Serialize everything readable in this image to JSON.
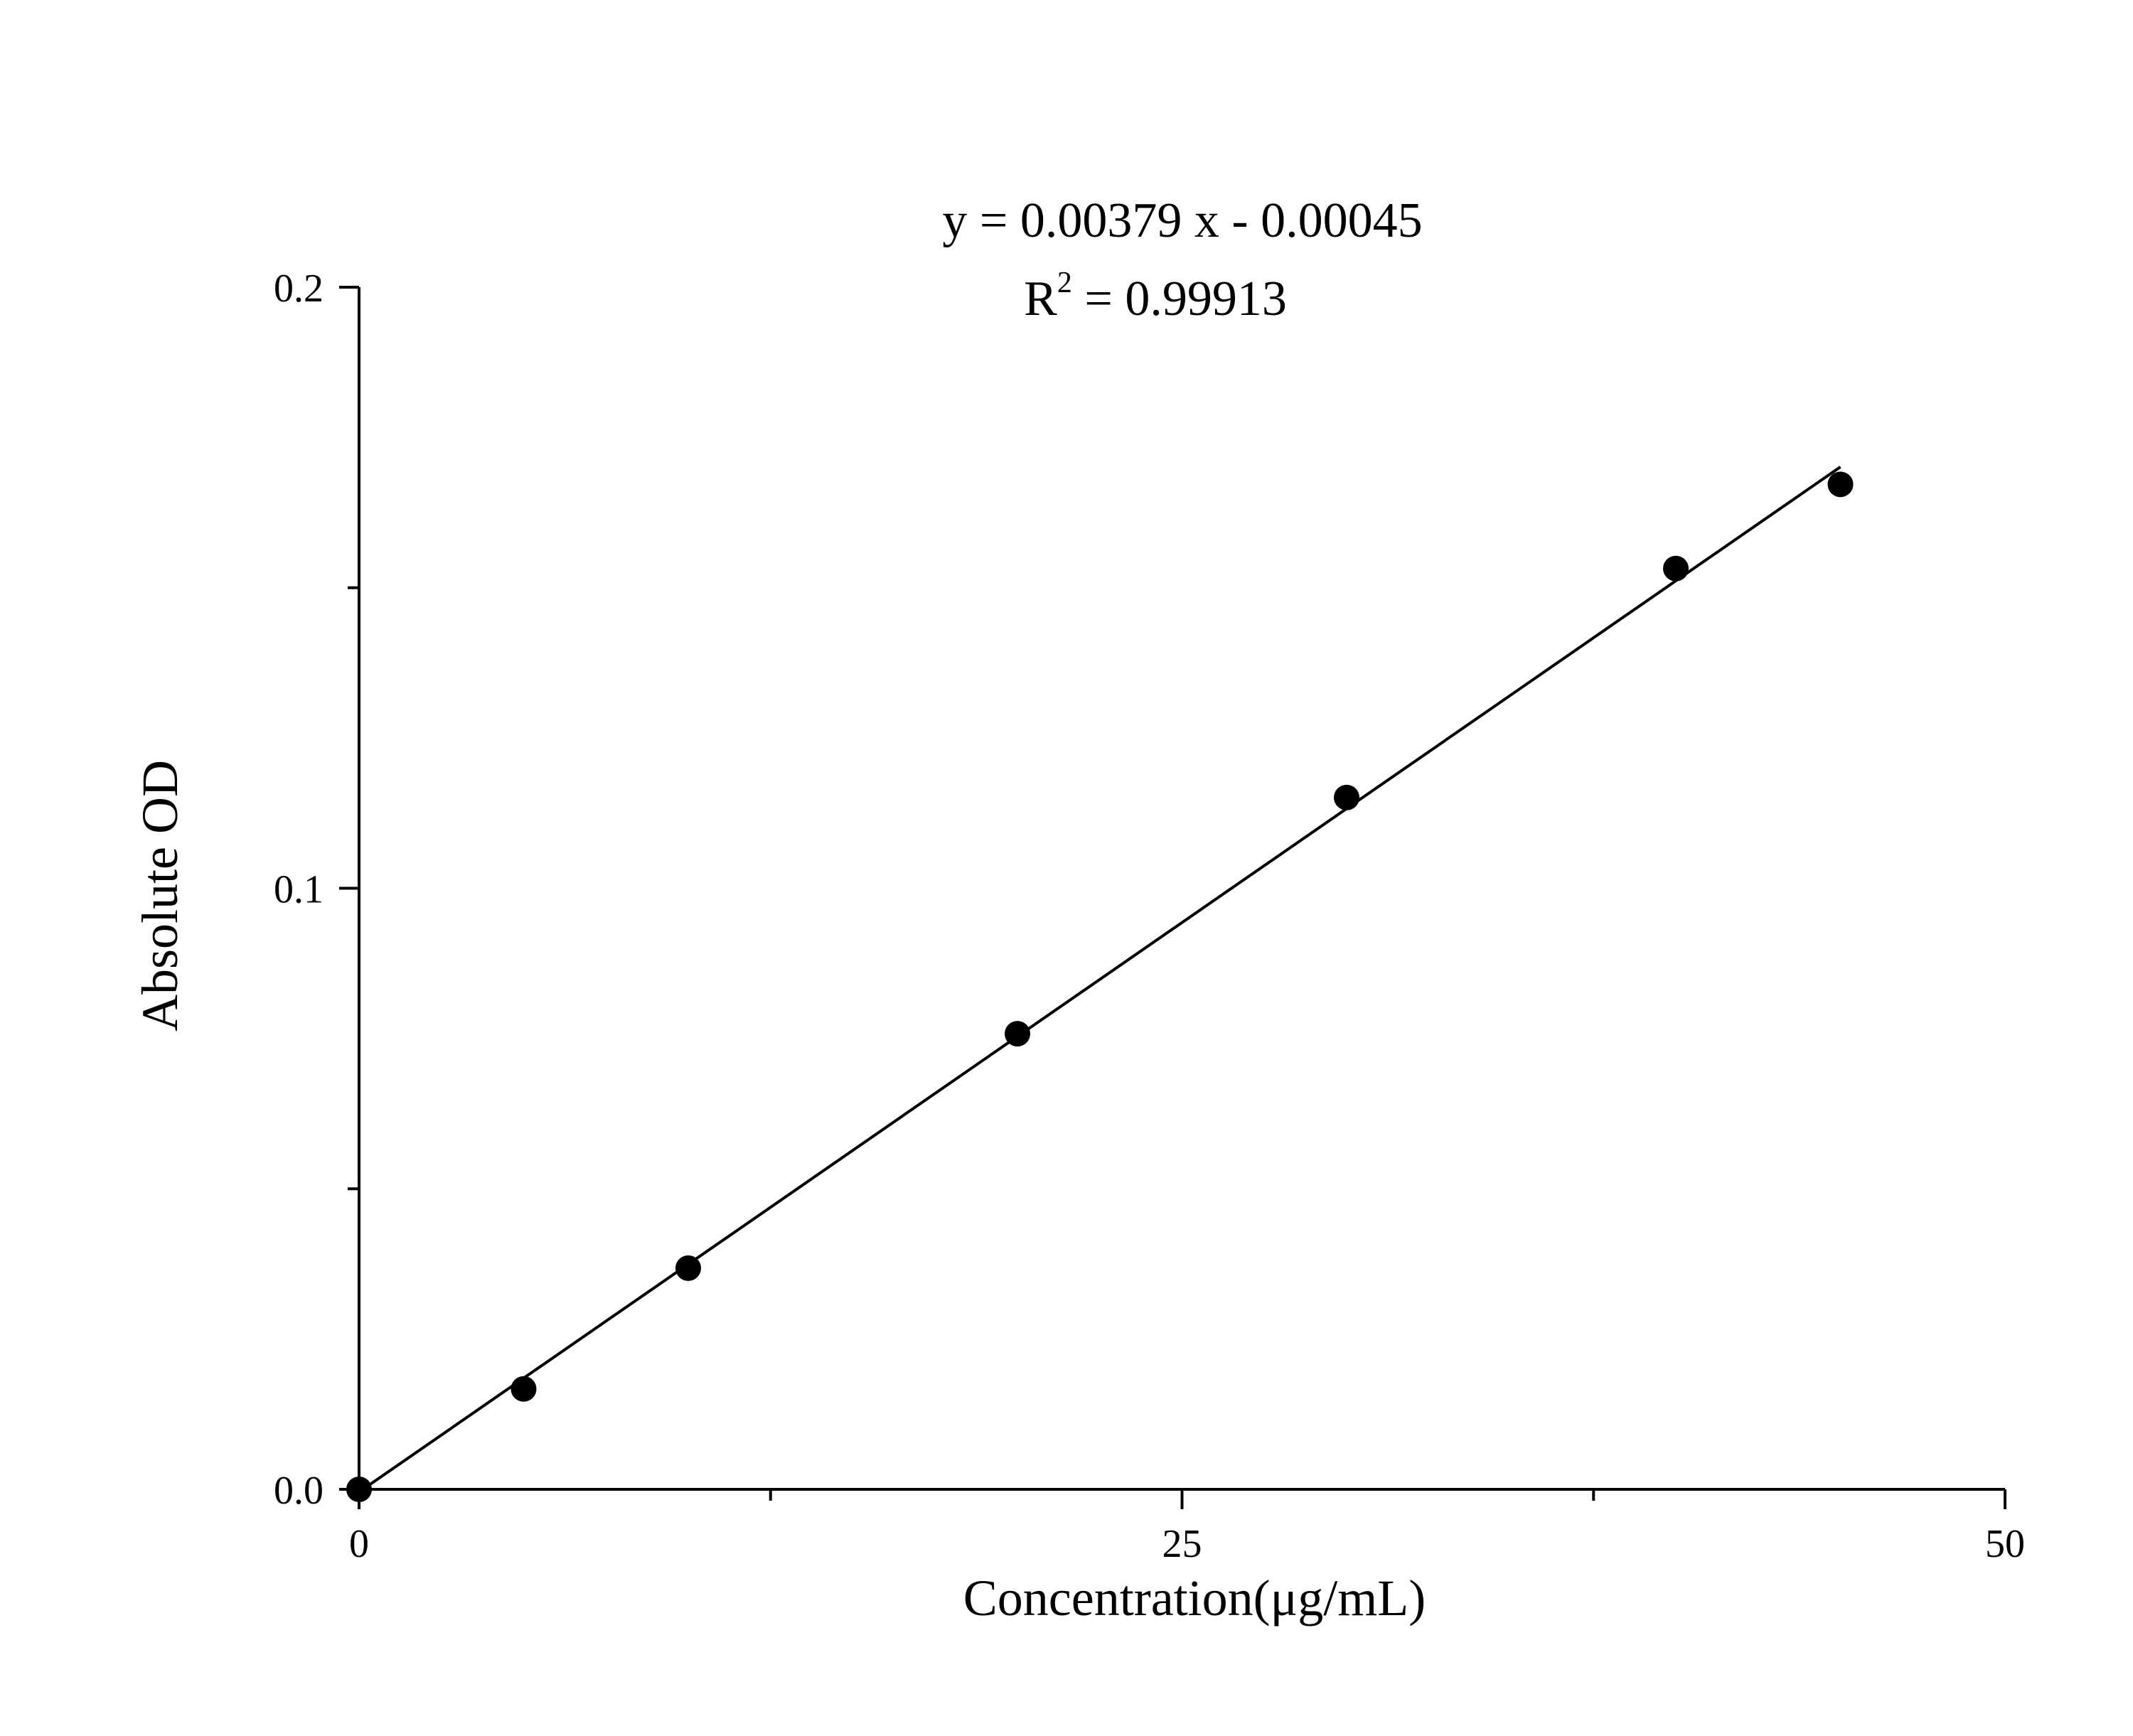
{
  "chart_data": {
    "type": "scatter",
    "title": "",
    "xlabel": "Concentration(μg/mL)",
    "ylabel": "Absolute OD",
    "xlim": [
      0,
      50
    ],
    "ylim": [
      0,
      0.2
    ],
    "x_ticks": [
      0,
      25,
      50
    ],
    "x_tick_labels": [
      "0",
      "25",
      "50"
    ],
    "x_minor_ticks": [
      12.5,
      37.5
    ],
    "y_ticks": [
      0,
      0.1,
      0.2
    ],
    "y_tick_labels": [
      "0.0",
      "0.1",
      "0.2"
    ],
    "y_minor_ticks": [
      0.05,
      0.15
    ],
    "grid": false,
    "series": [
      {
        "x": [
          0,
          5,
          10,
          20,
          30,
          40,
          45
        ],
        "y": [
          0,
          0.0167,
          0.0368,
          0.0758,
          0.1151,
          0.1532,
          0.1672
        ]
      }
    ],
    "fit_line": {
      "slope": 0.00379,
      "intercept": -0.00045,
      "x_range": [
        0,
        45
      ]
    },
    "annotations": {
      "equation": "y = 0.00379 x - 0.00045",
      "r2_prefix": "R",
      "r2_superscript": "2",
      "r2_value": " = 0.99913"
    }
  }
}
